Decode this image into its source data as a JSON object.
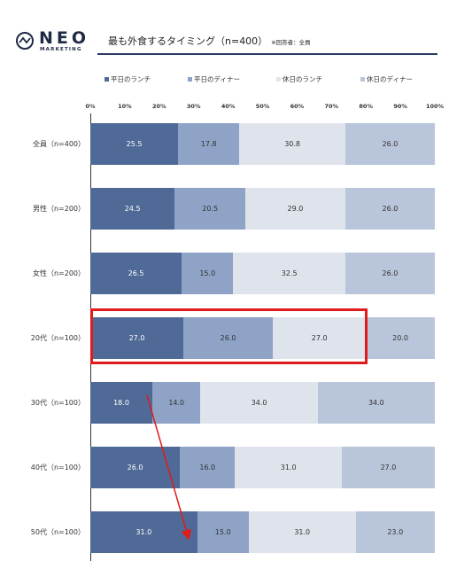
{
  "logo": {
    "word": "NEO",
    "sub": "MARKETING"
  },
  "header": {
    "title": "最も外食するタイミング（n=400）",
    "note": "※回答者：全員"
  },
  "chart_data": {
    "type": "bar",
    "orientation": "horizontal",
    "stacked": "percent",
    "categories": [
      "全員（n=400）",
      "男性（n=200）",
      "女性（n=200）",
      "20代（n=100）",
      "30代（n=100）",
      "40代（n=100）",
      "50代（n=100）"
    ],
    "series": [
      {
        "name": "平日のランチ",
        "color": "#4f6a96",
        "values": [
          25.5,
          24.5,
          26.5,
          27.0,
          18.0,
          26.0,
          31.0
        ]
      },
      {
        "name": "平日のディナー",
        "color": "#8ea3c6",
        "values": [
          17.8,
          20.5,
          15.0,
          26.0,
          14.0,
          16.0,
          15.0
        ]
      },
      {
        "name": "休日のランチ",
        "color": "#dee3ec",
        "values": [
          30.8,
          29.0,
          32.5,
          27.0,
          34.0,
          31.0,
          31.0
        ]
      },
      {
        "name": "休日のディナー",
        "color": "#b9c5da",
        "values": [
          26.0,
          26.0,
          26.0,
          20.0,
          34.0,
          27.0,
          23.0
        ]
      }
    ],
    "value_labels": [
      [
        "25.5",
        "17.8",
        "30.8",
        "26.0"
      ],
      [
        "24.5",
        "20.5",
        "29.0",
        "26.0"
      ],
      [
        "26.5",
        "15.0",
        "32.5",
        "26.0"
      ],
      [
        "27.0",
        "26.0",
        "27.0",
        "20.0"
      ],
      [
        "18.0",
        "14.0",
        "34.0",
        "34.0"
      ],
      [
        "26.0",
        "16.0",
        "31.0",
        "27.0"
      ],
      [
        "31.0",
        "15.0",
        "31.0",
        "23.0"
      ]
    ],
    "xticks": [
      "0%",
      "10%",
      "20%",
      "30%",
      "40%",
      "50%",
      "60%",
      "70%",
      "80%",
      "90%",
      "100%"
    ],
    "xlim": [
      0,
      100
    ],
    "legend_position": "top",
    "grid": false,
    "annotations": {
      "highlight_category": "20代（n=100）",
      "arrow_from": "30代（n=100）",
      "arrow_to": "50代（n=100）",
      "accent": "#e01b1b"
    }
  }
}
